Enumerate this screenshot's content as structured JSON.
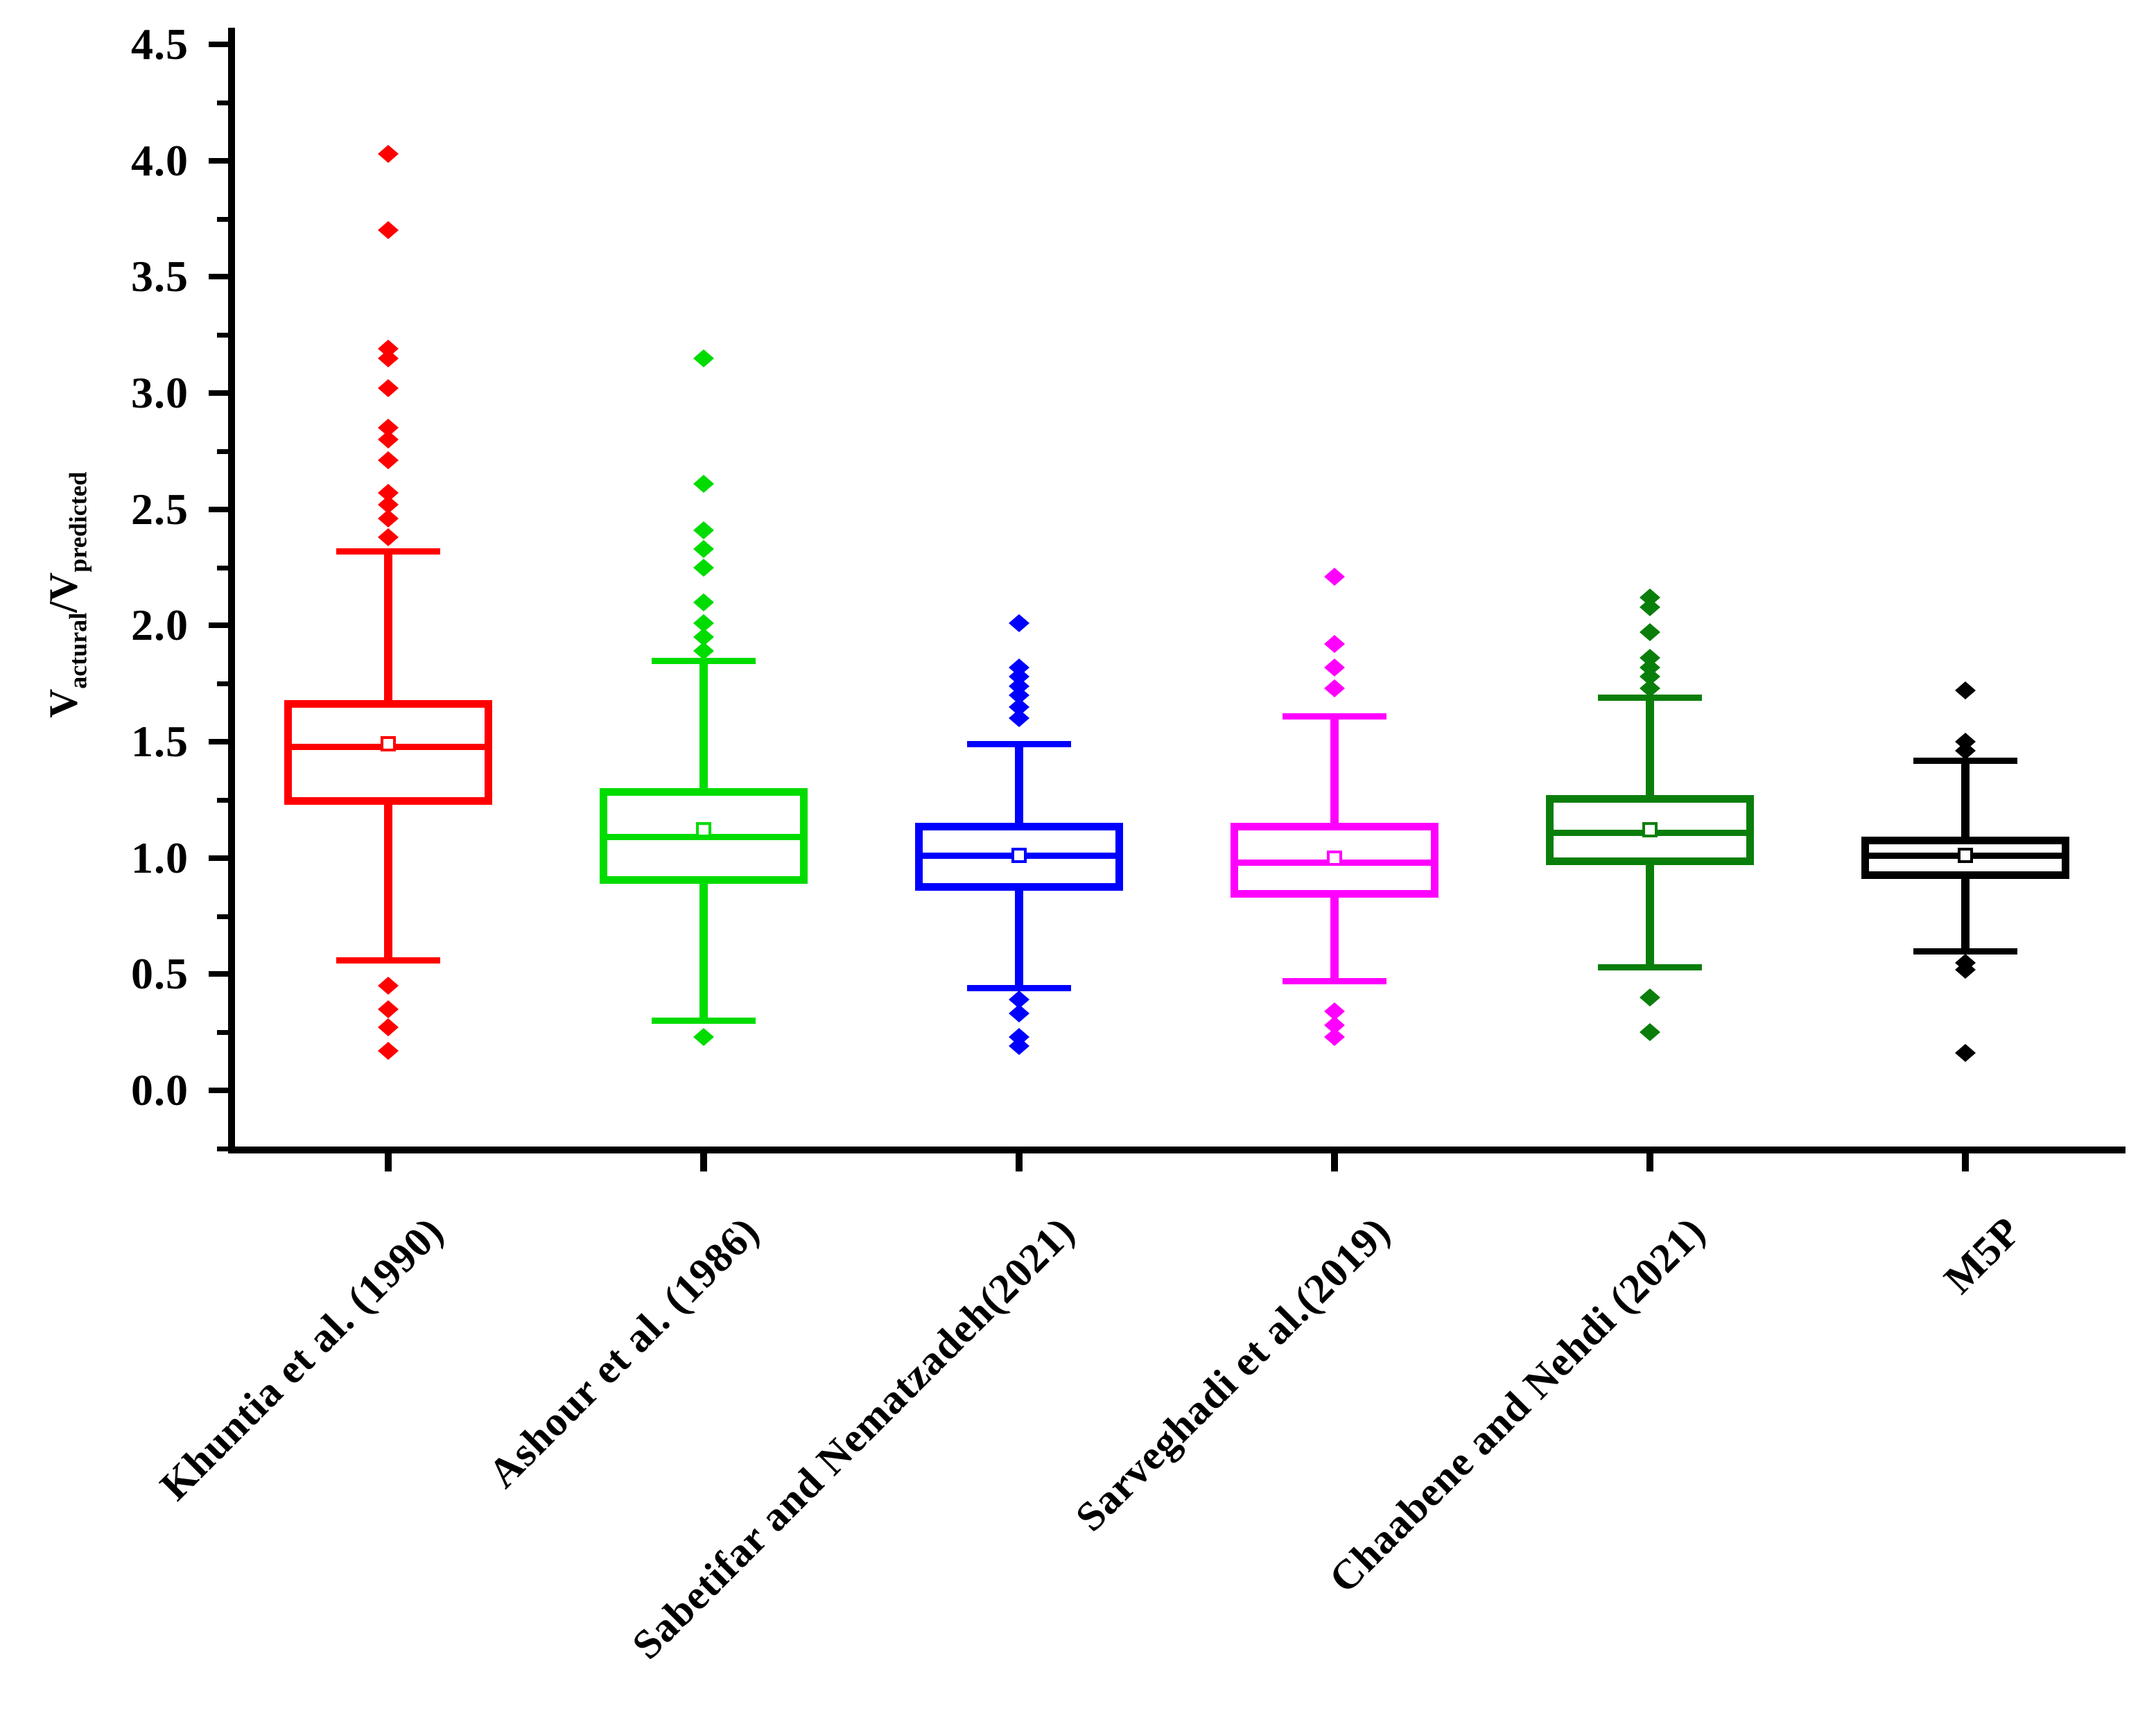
{
  "figure": {
    "kind": "box-and-whisker statistical comparison plot",
    "background": "#ffffff",
    "frame": "left and bottom axes only"
  },
  "chart_data": {
    "type": "boxplot",
    "title": "",
    "legend": "none",
    "grid": false,
    "y_axis": {
      "label_plain": "V_actural/V_predicted",
      "title_parts": {
        "v1": "V",
        "sub1": "actural",
        "v2": "/V",
        "sub2": "predicted"
      },
      "range_shown": [
        -0.27,
        4.62
      ],
      "major_ticks": [
        4.5,
        4.0,
        3.5,
        3.0,
        2.5,
        2.0,
        1.5,
        1.0,
        0.5,
        0.0
      ],
      "major_tick_labels": [
        "4.5",
        "4.0",
        "3.5",
        "3.0",
        "2.5",
        "2.0",
        "1.5",
        "1.0",
        "0.5",
        "0.0"
      ],
      "minor_ticks": [
        4.25,
        3.75,
        3.25,
        2.75,
        2.25,
        1.75,
        1.25,
        0.75,
        0.25,
        -0.25
      ]
    },
    "x_axis": {
      "tick_style": "one tick per category, outside",
      "label_rotation_deg": -45
    },
    "categories": [
      "Khuntia et al. (1990)",
      "Ashour et al. (1986)",
      "Sabetifar and Nematzadeh(2021)",
      "Sarveghadi et al.(2019)",
      "Chaabene and Nehdi (2021)",
      "M5P"
    ],
    "marker_shapes": {
      "outlier": "diamond",
      "mean": "open-square",
      "median": "line"
    },
    "series": [
      {
        "name": "Khuntia et al. (1990)",
        "color": "#FF0000",
        "q1": 1.23,
        "median": 1.48,
        "q3": 1.68,
        "mean": 1.49,
        "whisker_low": 0.56,
        "whisker_high": 2.32,
        "outliers_high": [
          4.03,
          3.7,
          3.19,
          3.15,
          3.02,
          2.85,
          2.8,
          2.71,
          2.57,
          2.52,
          2.46,
          2.38
        ],
        "outliers_low": [
          0.45,
          0.35,
          0.27,
          0.17
        ]
      },
      {
        "name": "Ashour et al. (1986)",
        "color": "#00DC00",
        "q1": 0.89,
        "median": 1.09,
        "q3": 1.3,
        "mean": 1.12,
        "whisker_low": 0.3,
        "whisker_high": 1.85,
        "outliers_high": [
          3.15,
          2.61,
          2.41,
          2.33,
          2.25,
          2.1,
          2.01,
          1.95,
          1.89
        ],
        "outliers_low": [
          0.23
        ]
      },
      {
        "name": "Sabetifar and Nematzadeh(2021)",
        "color": "#0000FF",
        "q1": 0.86,
        "median": 1.01,
        "q3": 1.15,
        "mean": 1.01,
        "whisker_low": 0.44,
        "whisker_high": 1.49,
        "outliers_high": [
          2.01,
          1.82,
          1.78,
          1.74,
          1.7,
          1.65,
          1.6
        ],
        "outliers_low": [
          0.39,
          0.33,
          0.23,
          0.19
        ]
      },
      {
        "name": "Sarveghadi et al.(2019)",
        "color": "#FF00FF",
        "q1": 0.83,
        "median": 0.98,
        "q3": 1.15,
        "mean": 1.0,
        "whisker_low": 0.47,
        "whisker_high": 1.61,
        "outliers_high": [
          2.21,
          1.92,
          1.82,
          1.73
        ],
        "outliers_low": [
          0.34,
          0.28,
          0.23
        ]
      },
      {
        "name": "Chaabene and Nehdi (2021)",
        "color": "#0A7E0A",
        "q1": 0.97,
        "median": 1.11,
        "q3": 1.27,
        "mean": 1.12,
        "whisker_low": 0.53,
        "whisker_high": 1.69,
        "outliers_high": [
          2.12,
          2.08,
          1.97,
          1.86,
          1.82,
          1.78,
          1.73
        ],
        "outliers_low": [
          0.4,
          0.25
        ]
      },
      {
        "name": "M5P",
        "color": "#000000",
        "q1": 0.91,
        "median": 1.01,
        "q3": 1.09,
        "mean": 1.01,
        "whisker_low": 0.6,
        "whisker_high": 1.42,
        "outliers_high": [
          1.72,
          1.5,
          1.46
        ],
        "outliers_low": [
          0.55,
          0.52,
          0.16
        ]
      }
    ]
  }
}
